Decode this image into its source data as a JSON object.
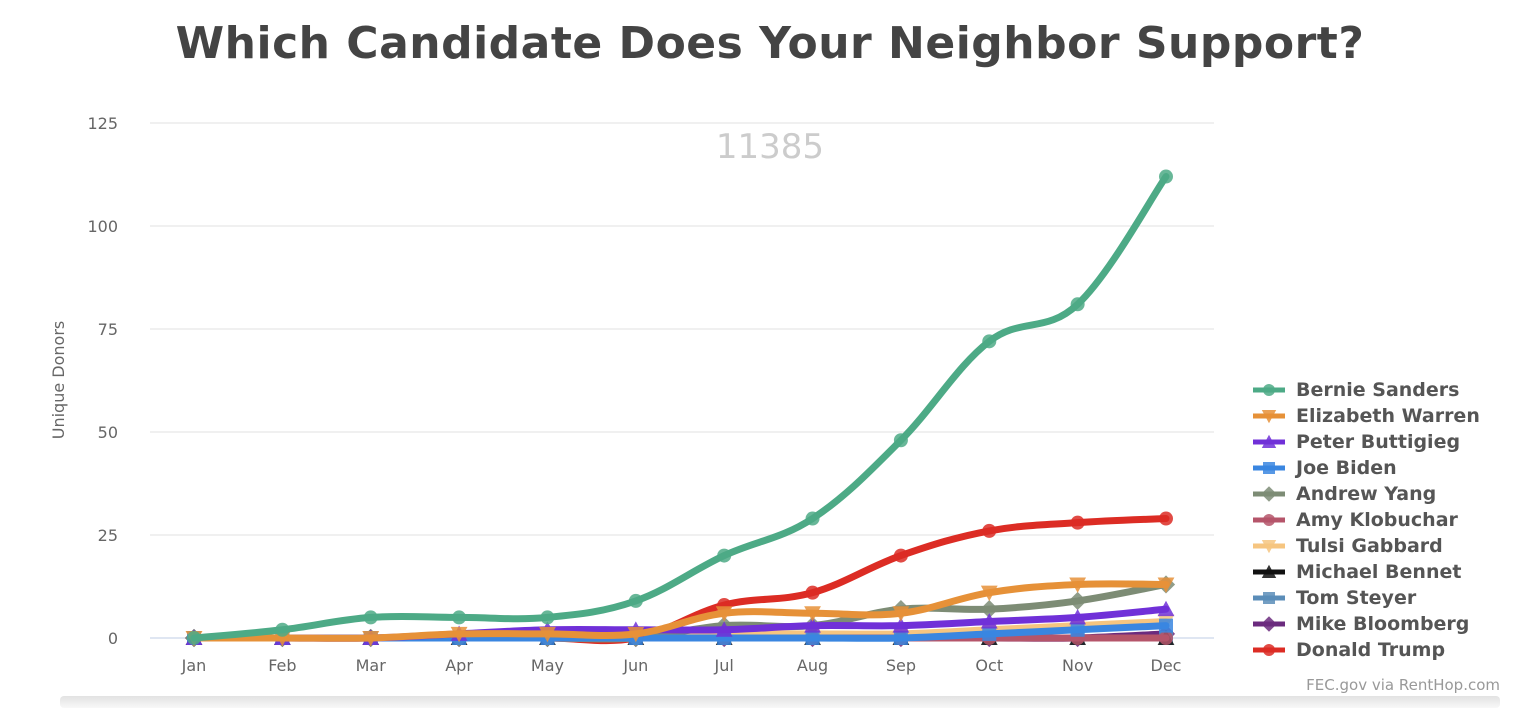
{
  "chart_data": {
    "type": "line",
    "title": "Which Candidate Does Your Neighbor Support?",
    "watermark": "11385",
    "xlabel": "",
    "ylabel": "Unique Donors",
    "ylim": [
      0,
      125
    ],
    "yticks": [
      0,
      25,
      50,
      75,
      100,
      125
    ],
    "grid": true,
    "legend_position": "right",
    "categories": [
      "Jan",
      "Feb",
      "Mar",
      "Apr",
      "May",
      "Jun",
      "Jul",
      "Aug",
      "Sep",
      "Oct",
      "Nov",
      "Dec"
    ],
    "series": [
      {
        "name": "Bernie Sanders",
        "color": "#4daa86",
        "marker": "circle",
        "values": [
          0,
          2,
          5,
          5,
          5,
          9,
          20,
          29,
          48,
          72,
          81,
          112
        ]
      },
      {
        "name": "Elizabeth Warren",
        "color": "#e69138",
        "marker": "triangle-down",
        "values": [
          0,
          0,
          0,
          1,
          1,
          1,
          6,
          6,
          6,
          11,
          13,
          13
        ]
      },
      {
        "name": "Peter Buttigieg",
        "color": "#7030d8",
        "marker": "triangle",
        "values": [
          0,
          0,
          0,
          1,
          2,
          2,
          2,
          3,
          3,
          4,
          5,
          7
        ]
      },
      {
        "name": "Joe Biden",
        "color": "#3a86e0",
        "marker": "square",
        "values": [
          0,
          0,
          0,
          0,
          0,
          0,
          0,
          0,
          0,
          1,
          2,
          3
        ]
      },
      {
        "name": "Andrew Yang",
        "color": "#7d8c75",
        "marker": "diamond",
        "values": [
          0,
          0,
          0,
          0,
          0,
          0,
          3,
          3,
          7,
          7,
          9,
          13
        ]
      },
      {
        "name": "Amy Klobuchar",
        "color": "#b5556a",
        "marker": "circle",
        "values": [
          0,
          0,
          0,
          0,
          0,
          0,
          0,
          0,
          0,
          0,
          0,
          0
        ]
      },
      {
        "name": "Tulsi Gabbard",
        "color": "#f6c580",
        "marker": "triangle-down",
        "values": [
          0,
          0,
          0,
          0,
          0,
          0,
          1,
          1,
          1,
          2,
          3,
          4
        ]
      },
      {
        "name": "Michael Bennet",
        "color": "#111111",
        "marker": "triangle",
        "values": [
          0,
          0,
          0,
          0,
          0,
          0,
          0,
          0,
          0,
          0,
          0,
          0
        ]
      },
      {
        "name": "Tom Steyer",
        "color": "#5b8db8",
        "marker": "square",
        "values": [
          0,
          0,
          0,
          0,
          0,
          0,
          0,
          0,
          0,
          0,
          0,
          0
        ]
      },
      {
        "name": "Mike Bloomberg",
        "color": "#6b2b7e",
        "marker": "diamond",
        "values": [
          0,
          0,
          0,
          0,
          0,
          0,
          0,
          0,
          0,
          0,
          0,
          1
        ]
      },
      {
        "name": "Donald Trump",
        "color": "#dc2c24",
        "marker": "circle",
        "values": [
          0,
          0,
          0,
          0,
          0,
          0,
          8,
          11,
          20,
          26,
          28,
          29
        ]
      }
    ],
    "credits": "FEC.gov via RentHop.com"
  }
}
